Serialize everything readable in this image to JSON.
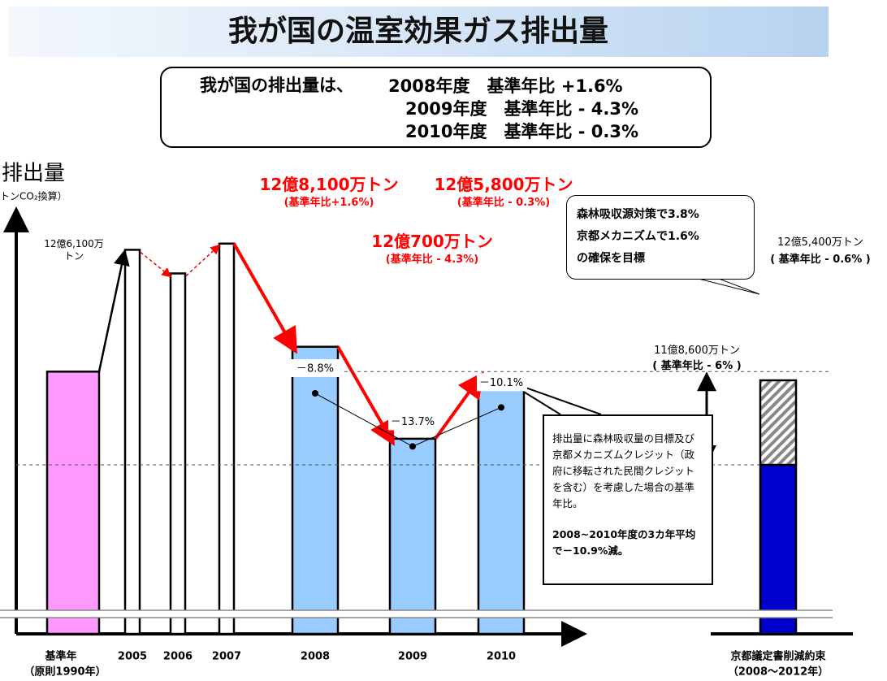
{
  "chart_data": {
    "type": "bar",
    "title": "我が国の温室効果ガス排出量",
    "y_label": "排出量",
    "y_unit": "トンCO₂換算）",
    "categories": [
      "基準年",
      "2005",
      "2006",
      "2007",
      "2008",
      "2009",
      "2010",
      "京都議定書削減約束"
    ],
    "category_notes": [
      "（原則1990年）",
      null,
      null,
      null,
      null,
      null,
      null,
      "（2008～2012年）"
    ],
    "values": [
      12.61,
      13.59,
      13.4,
      13.64,
      12.81,
      12.07,
      12.58,
      11.86
    ],
    "colors": [
      "#ff99ff",
      "#ffffff",
      "#ffffff",
      "#ffffff",
      "#99ccff",
      "#99ccff",
      "#99ccff",
      "#0000cc"
    ],
    "value_labels": [
      "12億6,100万トン",
      null,
      null,
      null,
      "12億8,100万トン",
      "12億700万トン",
      "12億5,800万トン",
      "11億8,600万トン"
    ],
    "ratio_labels": [
      null,
      null,
      null,
      null,
      "(基準年比+1.6%)",
      "(基準年比 - 4.3%)",
      "(基準年比 - 0.3%)",
      "( 基準年比 - 6% )"
    ],
    "hatched": {
      "values": [
        null,
        null,
        null,
        null,
        null,
        null,
        null,
        0.68
      ],
      "total_label": "12億5,400万トン",
      "ratio_label": "( 基準年比 - 0.6% )"
    },
    "ylim": [
      10.5,
      13.9
    ],
    "adjusted": {
      "values": [
        null,
        null,
        null,
        null,
        -8.8,
        -13.7,
        -10.1,
        null
      ],
      "value_labels": [
        null,
        null,
        null,
        null,
        "－8.8%",
        "－13.7%",
        "－10.1%",
        null
      ],
      "ylim": [
        -25,
        5
      ]
    }
  },
  "summary": {
    "lead": "我が国の排出量は、",
    "lines": [
      "2008年度　基準年比 +1.6%",
      "2009年度　基準年比 - 4.3%",
      "2010年度　基準年比 - 0.3%"
    ]
  },
  "callouts": {
    "target": [
      "森林吸収源対策で3.8%",
      "京都メカニズムで1.6%",
      "の確保を目標"
    ],
    "adjusted": [
      "排出量に森林吸収量の目標及び京都メカニズムクレジット（政府に移転された民間クレジットを含む）を考慮した場合の基準年比。",
      "2008~2010年度の3カ年平均で－10.9%減。"
    ]
  }
}
